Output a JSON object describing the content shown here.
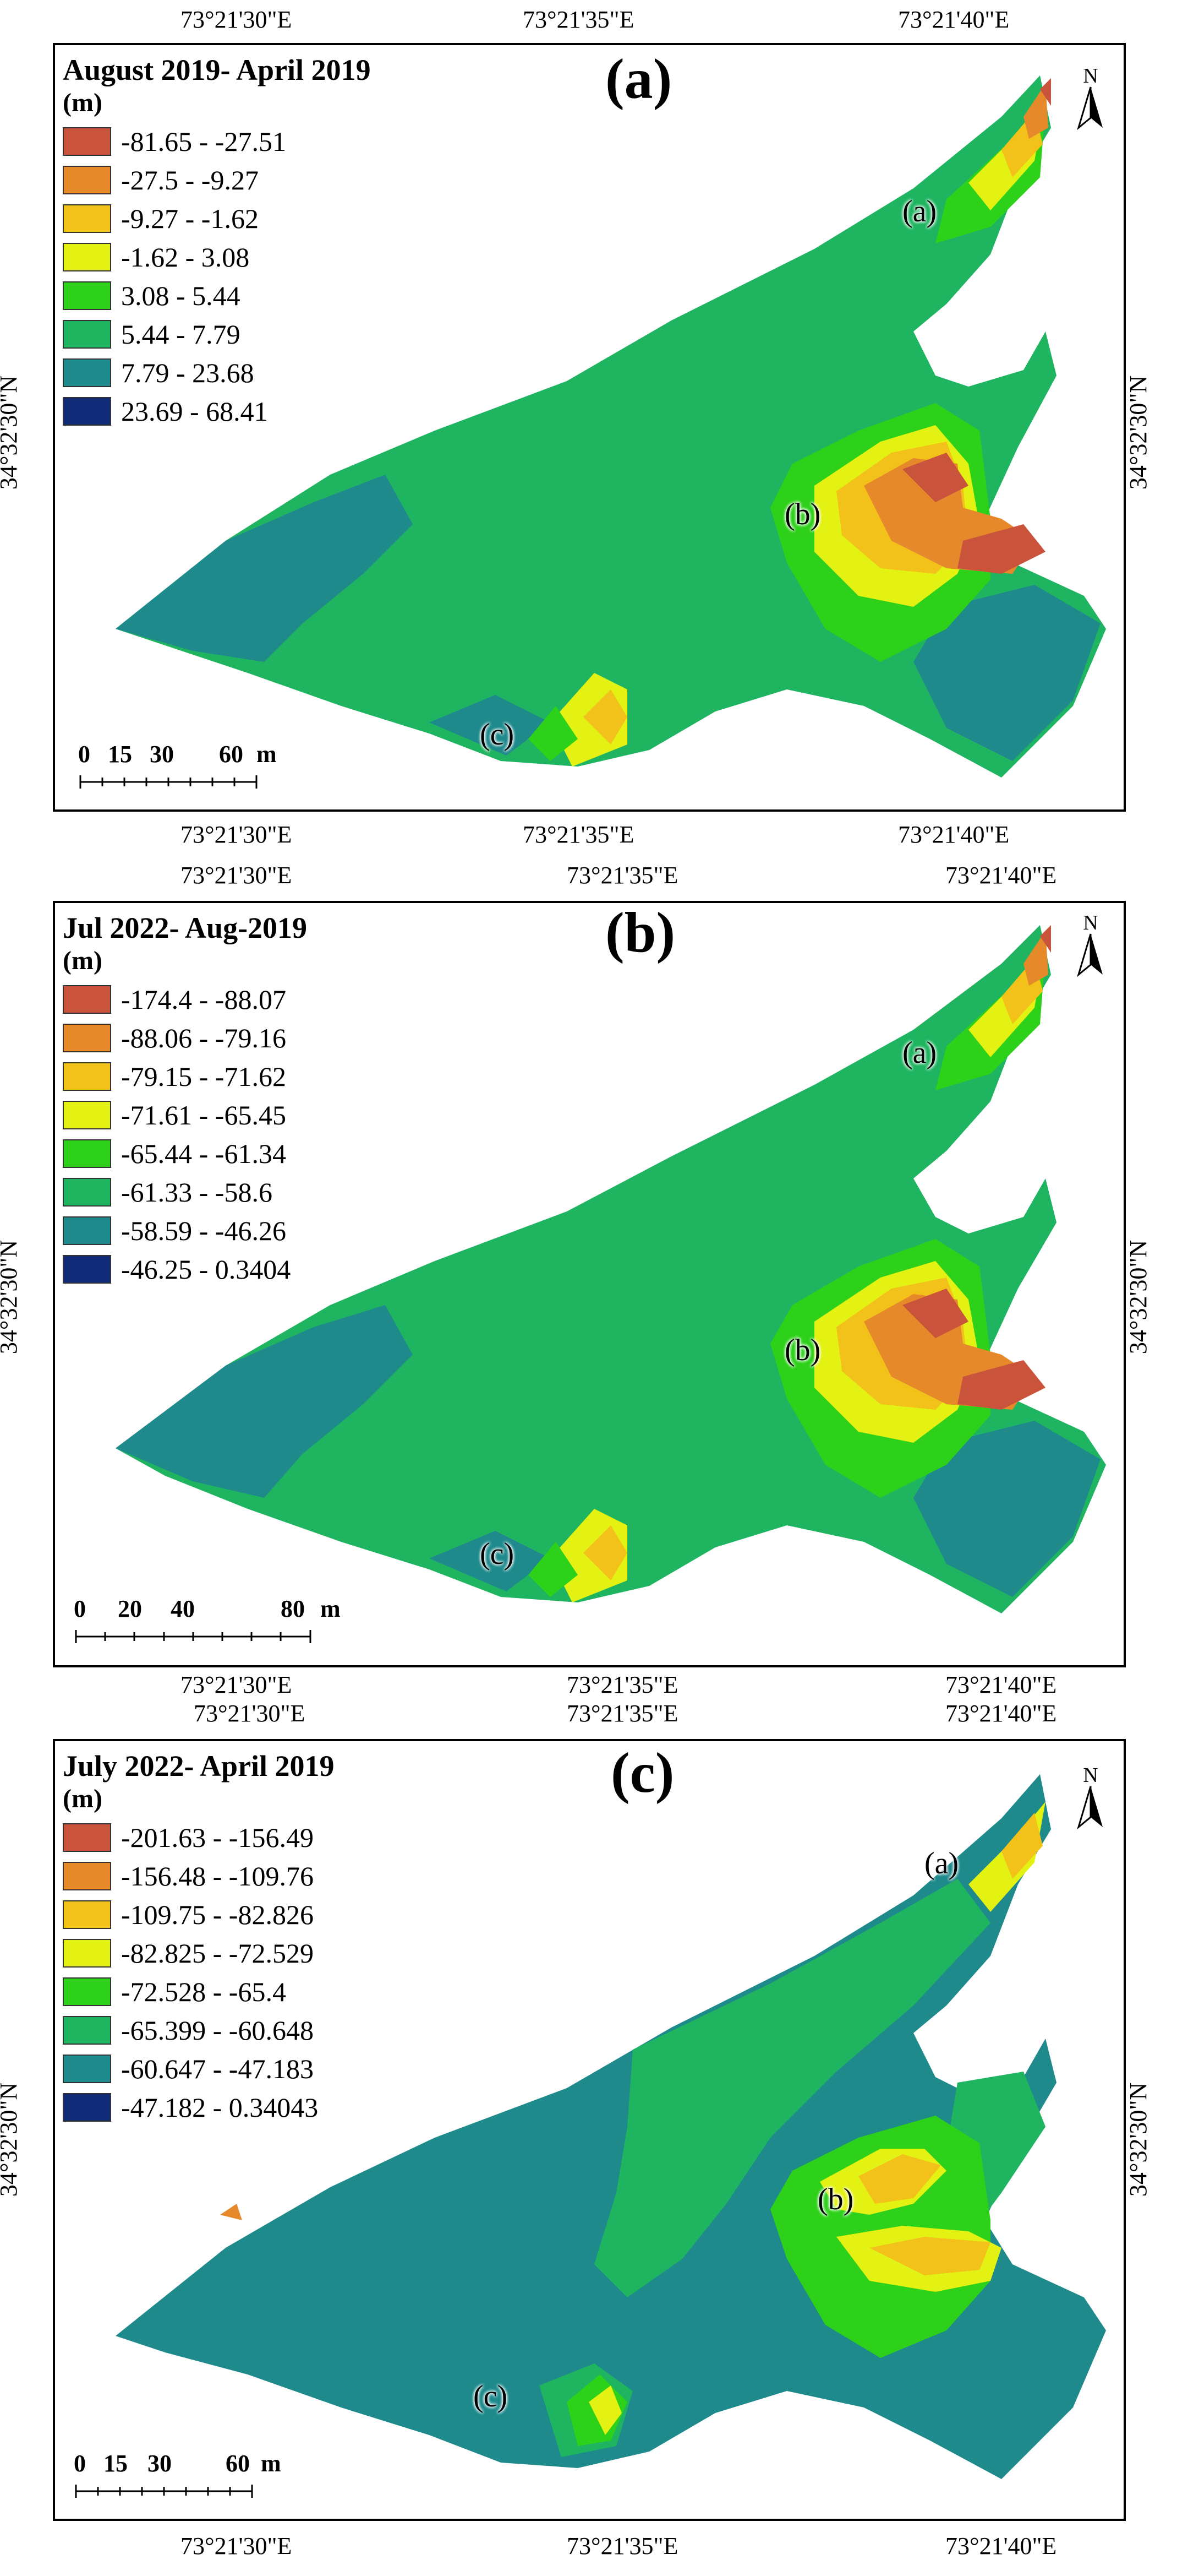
{
  "colors": {
    "class1": "#c9533b",
    "class2": "#e5892a",
    "class3": "#f2c11a",
    "class4": "#e3f212",
    "class5": "#2ed11a",
    "class6": "#1fb560",
    "class7": "#1f8a8c",
    "class8": "#102a78"
  },
  "icons": {
    "north": "north-arrow-icon"
  },
  "panels": [
    {
      "letter": "(a)",
      "title": "August 2019- April 2019",
      "unit": "(m)",
      "classes": [
        "-81.65 - -27.51",
        "-27.5 - -9.27",
        "-9.27 - -1.62",
        "-1.62 - 3.08",
        "3.08 - 5.44",
        "5.44 - 7.79",
        "7.79 - 23.68",
        "23.69 - 68.41"
      ],
      "sites": [
        "(a)",
        "(b)",
        "(c)"
      ],
      "north": "N",
      "scale": {
        "ticks": [
          "0",
          "15",
          "30",
          "60"
        ],
        "unit": "m"
      },
      "top_coords": [
        "73°21'30\"E",
        "73°21'35\"E",
        "73°21'40\"E"
      ],
      "bottom_coords": [
        "73°21'30\"E",
        "73°21'35\"E",
        "73°21'40\"E"
      ],
      "left_lat": "34°32'30\"N",
      "right_lat": "34°32'30\"N"
    },
    {
      "letter": "(b)",
      "title": "Jul 2022- Aug-2019",
      "unit": "(m)",
      "classes": [
        "-174.4 - -88.07",
        "-88.06 - -79.16",
        "-79.15 - -71.62",
        "-71.61 - -65.45",
        "-65.44 - -61.34",
        "-61.33 - -58.6",
        "-58.59 - -46.26",
        "-46.25 - 0.3404"
      ],
      "sites": [
        "(a)",
        "(b)",
        "(c)"
      ],
      "north": "N",
      "scale": {
        "ticks": [
          "0",
          "20",
          "40",
          "80"
        ],
        "unit": "m"
      },
      "top_coords": [
        "73°21'30\"E",
        "73°21'35\"E",
        "73°21'40\"E"
      ],
      "bottom_coords": [
        "73°21'30\"E",
        "73°21'35\"E",
        "73°21'40\"E"
      ],
      "left_lat": "34°32'30\"N",
      "right_lat": "34°32'30\"N"
    },
    {
      "letter": "(c)",
      "title": "July 2022- April 2019",
      "unit": "(m)",
      "classes": [
        "-201.63 - -156.49",
        "-156.48 - -109.76",
        "-109.75 - -82.826",
        "-82.825 - -72.529",
        "-72.528 - -65.4",
        "-65.399 - -60.648",
        "-60.647 - -47.183",
        "-47.182 - 0.34043"
      ],
      "sites": [
        "(a)",
        "(b)",
        "(c)"
      ],
      "north": "N",
      "scale": {
        "ticks": [
          "0",
          "15",
          "30",
          "60"
        ],
        "unit": "m"
      },
      "top_coords": [
        "73°21'30\"E",
        "73°21'35\"E",
        "73°21'40\"E"
      ],
      "bottom_coords": [
        "73°21'30\"E",
        "73°21'35\"E",
        "73°21'40\"E"
      ],
      "left_lat": "34°32'30\"N",
      "right_lat": "34°32'30\"N"
    }
  ]
}
